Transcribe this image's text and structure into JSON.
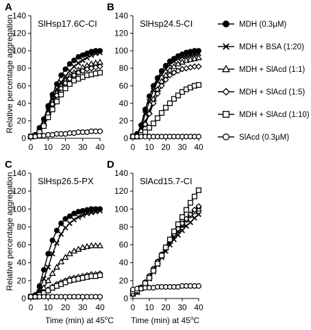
{
  "figure": {
    "ylabel": "Relative percentage aggregation",
    "xlabel": "Time (min) at 45",
    "xlabel_sup": "o",
    "xlabel_tail": "C",
    "line_color": "#000000"
  },
  "legend": [
    {
      "label": "MDH (0.3μM)",
      "marker": "filled-circle"
    },
    {
      "label": "MDH + BSA (1:20)",
      "marker": "x"
    },
    {
      "label": "MDH + SlAcd (1:1)",
      "marker": "open-triangle"
    },
    {
      "label": "MDH + SlAcd (1:5)",
      "marker": "open-diamond"
    },
    {
      "label": "MDH + SlAcd (1:10)",
      "marker": "open-square"
    },
    {
      "label": "SlAcd  (0.3μM)",
      "marker": "open-circle"
    }
  ],
  "chart_data": [
    {
      "panel": "A",
      "title": "SlHsp17.6C-CI",
      "type": "line",
      "xlim": [
        0,
        40
      ],
      "ylim": [
        0,
        140
      ],
      "xticks": [
        0,
        10,
        20,
        30,
        40
      ],
      "yticks": [
        0,
        20,
        40,
        60,
        80,
        100,
        120,
        140
      ],
      "x": [
        0,
        2.5,
        5,
        7.5,
        10,
        12.5,
        15,
        17.5,
        20,
        22.5,
        25,
        27.5,
        30,
        32.5,
        35,
        37.5,
        40
      ],
      "series": [
        {
          "name": "MDH (0.3μM)",
          "marker": "filled-circle",
          "values": [
            2,
            4,
            12,
            22,
            37,
            50,
            62,
            72,
            79,
            85,
            89,
            93,
            95,
            97,
            99,
            100,
            100
          ]
        },
        {
          "name": "MDH + BSA (1:20)",
          "marker": "x",
          "values": [
            2,
            3,
            9,
            18,
            32,
            45,
            56,
            64,
            71,
            77,
            82,
            86,
            89,
            92,
            95,
            97,
            98
          ]
        },
        {
          "name": "MDH + SlAcd (1:1)",
          "marker": "open-triangle",
          "values": [
            2,
            3,
            8,
            17,
            30,
            42,
            52,
            60,
            66,
            71,
            75,
            78,
            81,
            83,
            85,
            86,
            87
          ]
        },
        {
          "name": "MDH + SlAcd (1:5)",
          "marker": "open-diamond",
          "values": [
            2,
            3,
            8,
            16,
            28,
            39,
            49,
            57,
            63,
            68,
            72,
            75,
            77,
            79,
            80,
            81,
            82
          ]
        },
        {
          "name": "MDH + SlAcd (1:10)",
          "marker": "open-square",
          "values": [
            2,
            3,
            7,
            14,
            24,
            33,
            42,
            50,
            57,
            62,
            66,
            68,
            70,
            72,
            73,
            74,
            75
          ]
        },
        {
          "name": "SlAcd  (0.3μM)",
          "marker": "open-circle",
          "values": [
            2,
            2,
            3,
            3,
            4,
            4,
            5,
            5,
            5,
            6,
            6,
            7,
            7,
            7,
            8,
            8,
            8
          ]
        }
      ]
    },
    {
      "panel": "B",
      "title": "SlHsp24.5-CI",
      "type": "line",
      "xlim": [
        0,
        40
      ],
      "ylim": [
        0,
        140
      ],
      "xticks": [
        0,
        10,
        20,
        30,
        40
      ],
      "yticks": [
        0,
        20,
        40,
        60,
        80,
        100,
        120,
        140
      ],
      "x": [
        0,
        2.5,
        5,
        7.5,
        10,
        12.5,
        15,
        17.5,
        20,
        22.5,
        25,
        27.5,
        30,
        32.5,
        35,
        37.5,
        40
      ],
      "series": [
        {
          "name": "MDH (0.3μM)",
          "marker": "filled-circle",
          "values": [
            2,
            5,
            15,
            33,
            48,
            60,
            69,
            77,
            83,
            88,
            91,
            94,
            96,
            98,
            99,
            100,
            100
          ]
        },
        {
          "name": "MDH + BSA (1:20)",
          "marker": "x",
          "values": [
            2,
            4,
            12,
            28,
            42,
            55,
            65,
            73,
            79,
            84,
            88,
            91,
            93,
            94,
            95,
            96,
            97
          ]
        },
        {
          "name": "MDH + SlAcd (1:1)",
          "marker": "open-triangle",
          "values": [
            2,
            3,
            8,
            18,
            30,
            45,
            56,
            65,
            72,
            78,
            82,
            85,
            87,
            89,
            90,
            91,
            92
          ]
        },
        {
          "name": "MDH + SlAcd (1:5)",
          "marker": "open-diamond",
          "values": [
            2,
            3,
            8,
            16,
            28,
            40,
            51,
            60,
            67,
            72,
            75,
            77,
            79,
            80,
            81,
            82,
            82
          ]
        },
        {
          "name": "MDH + SlAcd (1:10)",
          "marker": "open-square",
          "values": [
            2,
            2,
            4,
            7,
            12,
            17,
            23,
            29,
            35,
            40,
            45,
            49,
            53,
            56,
            58,
            60,
            61
          ]
        },
        {
          "name": "SlAcd  (0.3μM)",
          "marker": "open-circle",
          "values": [
            2,
            2,
            2,
            2,
            2,
            2,
            2,
            2,
            2,
            2,
            2,
            2,
            2,
            2,
            2,
            2,
            2
          ]
        }
      ]
    },
    {
      "panel": "C",
      "title": "SlHsp26.5-PX",
      "type": "line",
      "xlim": [
        0,
        40
      ],
      "ylim": [
        0,
        140
      ],
      "xticks": [
        0,
        10,
        20,
        30,
        40
      ],
      "yticks": [
        0,
        20,
        40,
        60,
        80,
        100,
        120,
        140
      ],
      "x": [
        0,
        2.5,
        5,
        7.5,
        10,
        12.5,
        15,
        17.5,
        20,
        22.5,
        25,
        27.5,
        30,
        32.5,
        35,
        37.5,
        40
      ],
      "series": [
        {
          "name": "MDH (0.3μM)",
          "marker": "filled-circle",
          "values": [
            2,
            4,
            14,
            32,
            50,
            65,
            76,
            84,
            89,
            92,
            95,
            97,
            98,
            99,
            100,
            100,
            100
          ]
        },
        {
          "name": "MDH + BSA (1:20)",
          "marker": "x",
          "values": [
            2,
            3,
            10,
            22,
            35,
            50,
            62,
            72,
            79,
            84,
            88,
            91,
            93,
            95,
            96,
            97,
            98
          ]
        },
        {
          "name": "MDH + SlAcd (1:1)",
          "marker": "open-triangle",
          "values": [
            2,
            3,
            6,
            12,
            20,
            28,
            35,
            41,
            46,
            50,
            53,
            55,
            57,
            58,
            59,
            59,
            59
          ]
        },
        {
          "name": "MDH + SlAcd (1:5)",
          "marker": "open-diamond",
          "values": [
            2,
            2,
            4,
            7,
            10,
            13,
            16,
            18,
            20,
            22,
            23,
            24,
            25,
            26,
            27,
            27,
            28
          ]
        },
        {
          "name": "MDH + SlAcd (1:10)",
          "marker": "open-square",
          "values": [
            2,
            2,
            4,
            6,
            9,
            12,
            14,
            16,
            18,
            20,
            21,
            22,
            23,
            24,
            25,
            25,
            26
          ]
        },
        {
          "name": "SlAcd  (0.3μM)",
          "marker": "open-circle",
          "values": [
            2,
            2,
            2,
            2,
            2,
            2,
            2,
            2,
            2,
            2,
            2,
            2,
            2,
            2,
            2,
            2,
            2
          ]
        }
      ]
    },
    {
      "panel": "D",
      "title": "SlAcd15.7-CI",
      "type": "line",
      "xlim": [
        0,
        40
      ],
      "ylim": [
        0,
        140
      ],
      "xticks": [
        0,
        10,
        20,
        30,
        40
      ],
      "yticks": [
        0,
        20,
        40,
        60,
        80,
        100,
        120,
        140
      ],
      "x": [
        0,
        2.5,
        5,
        7.5,
        10,
        12.5,
        15,
        17.5,
        20,
        22.5,
        25,
        27.5,
        30,
        32.5,
        35,
        37.5,
        40
      ],
      "series": [
        {
          "name": "MDH (0.3μM)",
          "marker": "filled-circle",
          "values": [
            5,
            8,
            12,
            18,
            25,
            33,
            41,
            49,
            56,
            63,
            70,
            76,
            82,
            88,
            93,
            98,
            102
          ]
        },
        {
          "name": "MDH + BSA (1:20)",
          "marker": "x",
          "values": [
            5,
            7,
            11,
            16,
            22,
            30,
            38,
            46,
            53,
            60,
            66,
            71,
            76,
            81,
            85,
            90,
            94
          ]
        },
        {
          "name": "MDH + SlAcd (1:1)",
          "marker": "open-triangle",
          "values": [
            5,
            7,
            12,
            18,
            25,
            33,
            41,
            49,
            57,
            64,
            71,
            77,
            83,
            88,
            93,
            97,
            100
          ]
        },
        {
          "name": "MDH + SlAcd (1:5)",
          "marker": "open-diamond",
          "values": [
            5,
            8,
            12,
            18,
            25,
            33,
            41,
            49,
            57,
            65,
            72,
            78,
            84,
            89,
            94,
            99,
            103
          ]
        },
        {
          "name": "MDH + SlAcd (1:10)",
          "marker": "open-square",
          "values": [
            8,
            9,
            12,
            17,
            23,
            31,
            39,
            48,
            57,
            66,
            75,
            83,
            91,
            99,
            107,
            114,
            121
          ]
        },
        {
          "name": "SlAcd  (0.3μM)",
          "marker": "open-circle",
          "values": [
            10,
            11,
            11,
            12,
            12,
            12,
            13,
            13,
            13,
            13,
            13,
            13,
            14,
            14,
            14,
            14,
            14
          ]
        }
      ]
    }
  ]
}
